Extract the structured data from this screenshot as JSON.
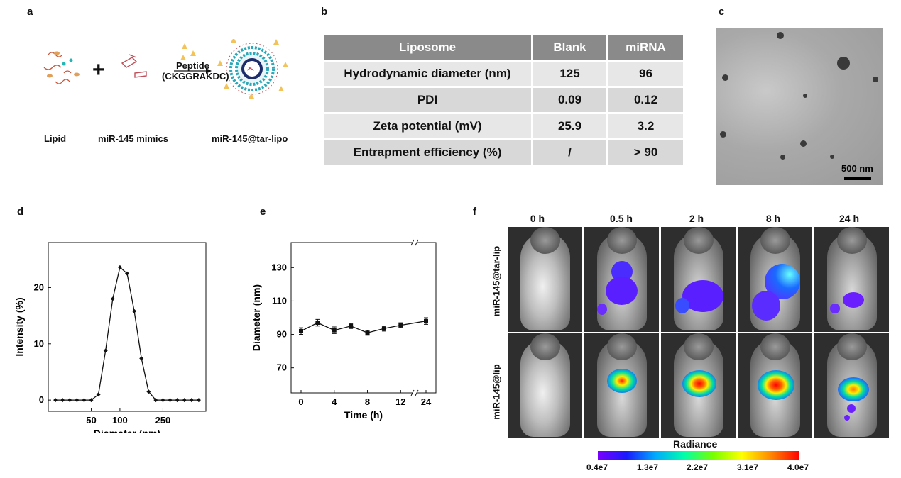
{
  "panels": {
    "a": "a",
    "b": "b",
    "c": "c",
    "d": "d",
    "e": "e",
    "f": "f"
  },
  "panel_a": {
    "plus": "+",
    "peptide_label": "Peptide",
    "peptide_seq": "(CKGGRAKDC)",
    "labels": [
      "Lipid",
      "miR-145 mimics",
      "miR-145@tar-lipo"
    ]
  },
  "panel_b": {
    "headers": [
      "Liposome",
      "Blank",
      "miRNA"
    ],
    "rows": [
      [
        "Hydrodynamic diameter (nm)",
        "125",
        "96"
      ],
      [
        "PDI",
        "0.09",
        "0.12"
      ],
      [
        "Zeta potential (mV)",
        "25.9",
        "3.2"
      ],
      [
        "Entrapment efficiency (%)",
        "/",
        "> 90"
      ]
    ]
  },
  "panel_c": {
    "scale_bar": "500 nm"
  },
  "chart_data": [
    {
      "type": "line",
      "panel": "d",
      "xlabel": "Diameter (nm)",
      "ylabel": "Intensity (%)",
      "xticks": [
        "50",
        "100",
        "250"
      ],
      "yticks": [
        "0",
        "10",
        "20"
      ],
      "ylim": [
        -2,
        28
      ],
      "x": [
        1,
        2,
        3,
        4,
        5,
        6,
        7,
        8,
        9,
        10,
        11,
        12,
        13,
        14,
        15,
        16,
        17,
        18,
        19,
        20,
        21
      ],
      "values": [
        0,
        0,
        0,
        0,
        0,
        0,
        1.0,
        8.8,
        18.0,
        23.6,
        22.5,
        15.8,
        7.4,
        1.5,
        0,
        0,
        0,
        0,
        0,
        0,
        0
      ]
    },
    {
      "type": "line",
      "panel": "e",
      "xlabel": "Time (h)",
      "ylabel": "Diameter (nm)",
      "xticks": [
        "0",
        "4",
        "8",
        "12",
        "24"
      ],
      "yticks": [
        "70",
        "90",
        "110",
        "130"
      ],
      "ylim": [
        55,
        145
      ],
      "x": [
        0,
        2,
        4,
        6,
        8,
        10,
        12,
        24
      ],
      "values": [
        92,
        97,
        92.5,
        95,
        91,
        93.5,
        95.5,
        98
      ],
      "errors": [
        2,
        2,
        2,
        1.5,
        1.5,
        1.5,
        1.5,
        2
      ]
    }
  ],
  "panel_f": {
    "time_labels": [
      "0 h",
      "0.5 h",
      "2 h",
      "8 h",
      "24 h"
    ],
    "row_labels": [
      "miR-145@tar-lip",
      "miR-145@lip"
    ],
    "colorbar_title": "Radiance",
    "colorbar_ticks": [
      "0.4e7",
      "1.3e7",
      "2.2e7",
      "3.1e7",
      "4.0e7"
    ],
    "colors": {
      "low": "#7a00ff",
      "high": "#ff0000"
    }
  }
}
